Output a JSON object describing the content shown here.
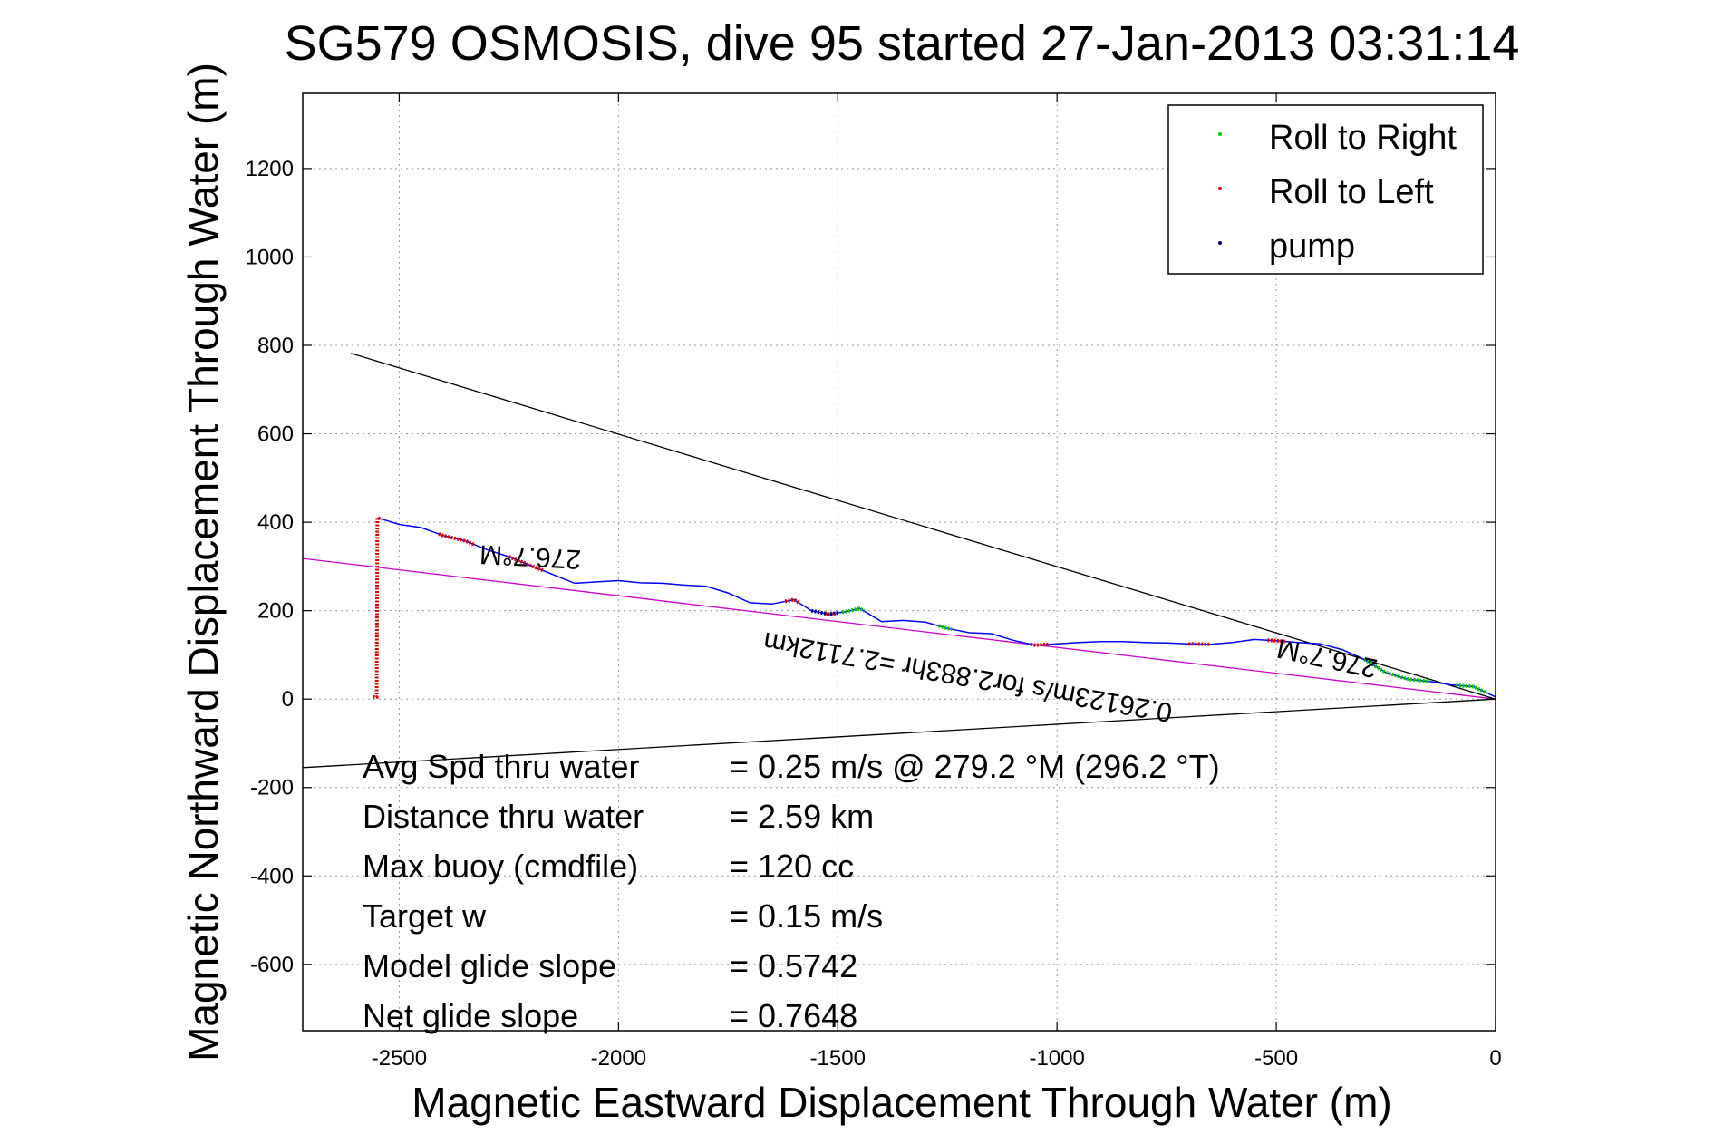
{
  "chart_data": {
    "type": "line",
    "title": "SG579 OSMOSIS, dive 95 started 27-Jan-2013 03:31:14",
    "xlabel": "Magnetic Eastward Displacement Through Water (m)",
    "ylabel": "Magnetic Northward Displacement Through Water (m)",
    "xlim": [
      -2720,
      0
    ],
    "ylim": [
      -750,
      1370
    ],
    "x_ticks": [
      -2500,
      -2000,
      -1500,
      -1000,
      -500,
      0
    ],
    "x_tick_labels": [
      "-2500",
      "-2000",
      "-1500",
      "-1000",
      "-500",
      "0"
    ],
    "y_ticks": [
      -600,
      -400,
      -200,
      0,
      200,
      400,
      600,
      800,
      1000,
      1200
    ],
    "y_tick_labels": [
      "-600",
      "-400",
      "-200",
      "0",
      "200",
      "400",
      "600",
      "800",
      "1000",
      "1200"
    ],
    "grid": true,
    "legend_placement": "top-right",
    "legend": [
      {
        "label": "Roll to Right",
        "color": "#00cc00"
      },
      {
        "label": "Roll to Left",
        "color": "#dd0000"
      },
      {
        "label": "pump",
        "color": "#000080"
      }
    ],
    "track": {
      "color": "#0000ff",
      "x": [
        -2550,
        -2500,
        -2450,
        -2400,
        -2350,
        -2300,
        -2250,
        -2200,
        -2150,
        -2100,
        -2050,
        -2000,
        -1950,
        -1900,
        -1850,
        -1800,
        -1750,
        -1700,
        -1650,
        -1600,
        -1560,
        -1520,
        -1480,
        -1450,
        -1400,
        -1350,
        -1300,
        -1250,
        -1200,
        -1150,
        -1100,
        -1050,
        -1000,
        -950,
        -900,
        -850,
        -800,
        -750,
        -700,
        -650,
        -600,
        -550,
        -500,
        -450,
        -400,
        -350,
        -300,
        -250,
        -200,
        -150,
        -100,
        -50,
        0
      ],
      "y": [
        410,
        395,
        388,
        370,
        358,
        338,
        322,
        302,
        282,
        262,
        265,
        268,
        263,
        262,
        258,
        255,
        240,
        218,
        215,
        225,
        200,
        192,
        198,
        205,
        175,
        178,
        174,
        160,
        150,
        148,
        133,
        122,
        125,
        128,
        130,
        130,
        128,
        127,
        125,
        124,
        128,
        135,
        132,
        128,
        125,
        112,
        90,
        60,
        45,
        40,
        32,
        28,
        5
      ]
    },
    "roll_right_segments": [
      {
        "x": [
          -1490,
          -1440
        ]
      },
      {
        "x": [
          -1270,
          -1240
        ]
      },
      {
        "x": [
          -300,
          -150
        ]
      },
      {
        "x": [
          -90,
          -20
        ]
      }
    ],
    "roll_left_segments": [
      {
        "x": [
          -2560,
          -2540
        ]
      },
      {
        "x": [
          -2410,
          -2330
        ]
      },
      {
        "x": [
          -2250,
          -2170
        ]
      },
      {
        "x": [
          -1620,
          -1590
        ]
      },
      {
        "x": [
          -1530,
          -1500
        ]
      },
      {
        "x": [
          -1060,
          -1020
        ]
      },
      {
        "x": [
          -700,
          -650
        ]
      },
      {
        "x": [
          -520,
          -480
        ]
      }
    ],
    "pump_segments": [
      {
        "x": [
          -1560,
          -1500
        ]
      }
    ],
    "heading_lines": [
      {
        "color": "#cc00cc",
        "x": [
          -2720,
          0
        ],
        "y": [
          318,
          0
        ]
      },
      {
        "color": "#000000",
        "x": [
          -2610,
          0
        ],
        "y": [
          782,
          0
        ]
      },
      {
        "color": "#000000",
        "x": [
          -2720,
          0
        ],
        "y": [
          -155,
          0
        ]
      }
    ],
    "annotations": [
      {
        "text": "276.7°M",
        "x": -2200,
        "y": 342,
        "rotation": 183,
        "size": 30
      },
      {
        "text": "276.7°M",
        "x": -380,
        "y": 112,
        "rotation": 192,
        "size": 30
      },
      {
        "text": "0.26123m/s for2.883hr =2.7112km",
        "x": -1200,
        "y": 70,
        "rotation": 190,
        "size": 30
      }
    ],
    "stats": [
      {
        "label": "Avg Spd thru water",
        "value": "=  0.25 m/s @ 279.2 °M (296.2 °T)"
      },
      {
        "label": "Distance thru water",
        "value": "=  2.59 km"
      },
      {
        "label": "Max buoy (cmdfile)",
        "value": "= 120 cc"
      },
      {
        "label": "Target w",
        "value": "= 0.15 m/s"
      },
      {
        "label": "Model glide slope",
        "value": "= 0.5742"
      },
      {
        "label": "Net glide slope",
        "value": "= 0.7648"
      }
    ]
  }
}
